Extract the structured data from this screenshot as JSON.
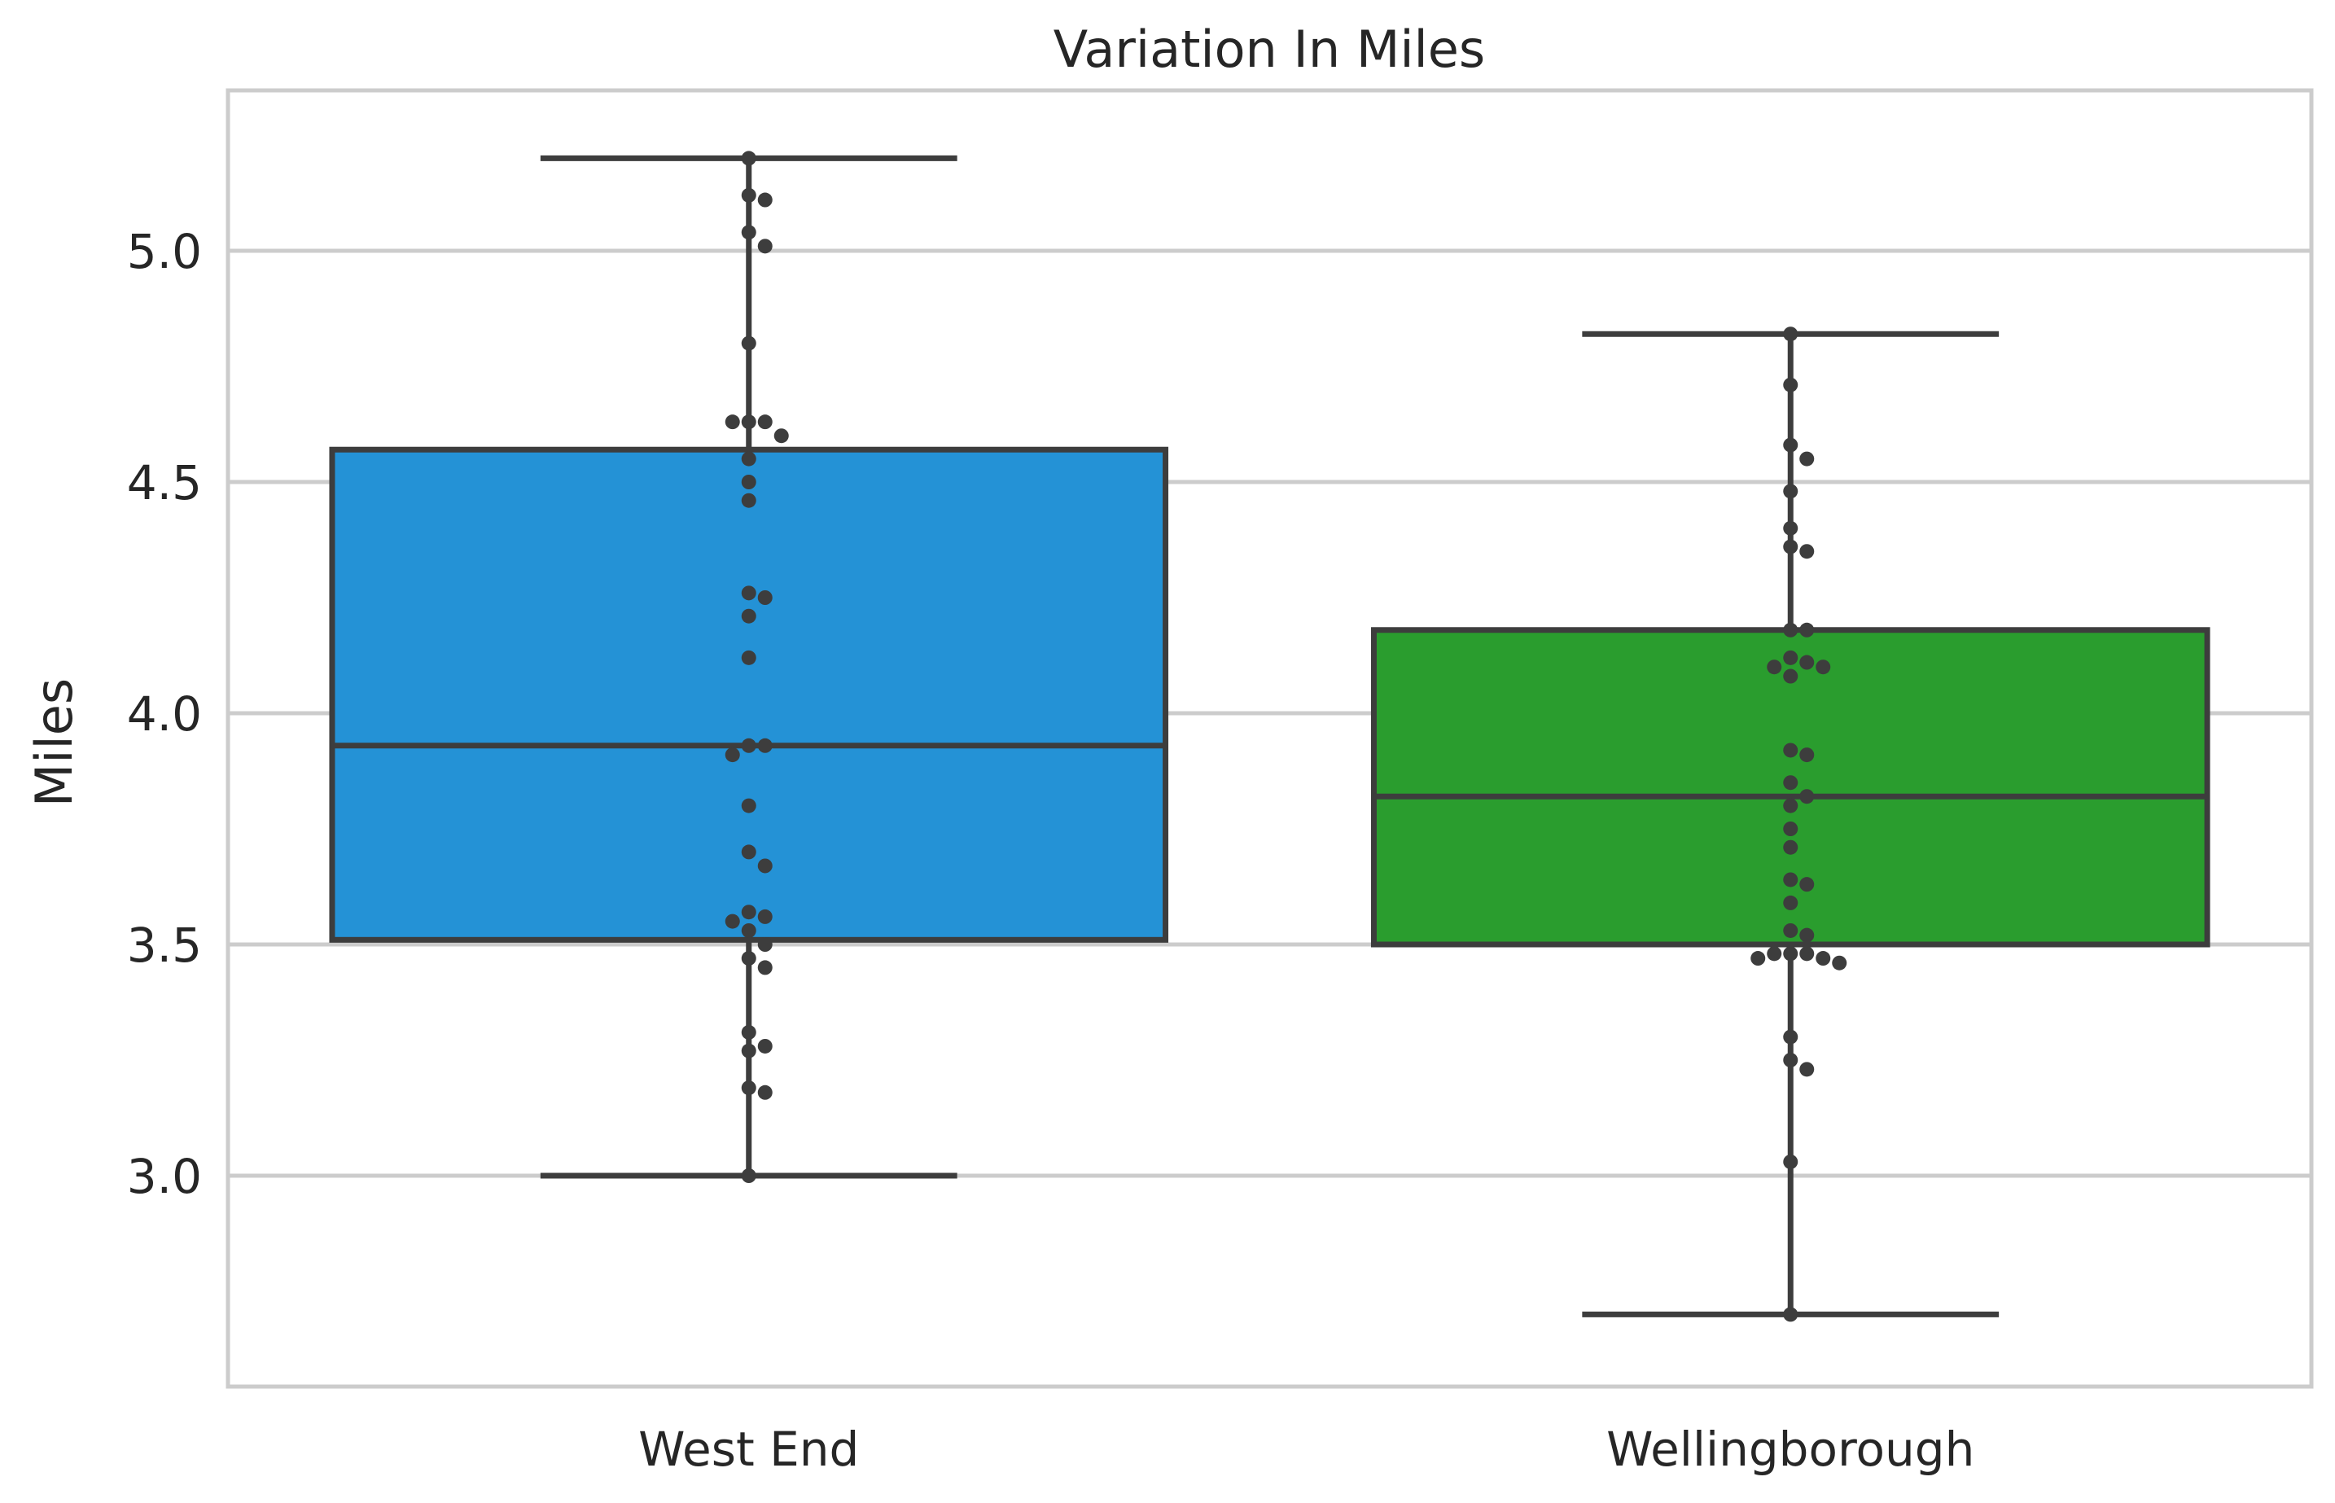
{
  "chart_data": {
    "type": "box",
    "title": "Variation In Miles",
    "xlabel": "",
    "ylabel": "Miles",
    "ylim": [
      2.55,
      5.35
    ],
    "yticks": [
      3.0,
      3.5,
      4.0,
      4.5,
      5.0
    ],
    "ytick_labels": [
      "3.0",
      "3.5",
      "4.0",
      "4.5",
      "5.0"
    ],
    "grid": "horizontal",
    "categories": [
      "West End",
      "Wellingborough"
    ],
    "boxes": [
      {
        "category": "West End",
        "color": "#2492d6",
        "whisker_low": 3.0,
        "q1": 3.51,
        "median": 3.93,
        "q3": 4.57,
        "whisker_high": 5.2,
        "points": [
          5.2,
          5.12,
          5.11,
          5.04,
          5.01,
          4.8,
          4.63,
          4.63,
          4.63,
          4.6,
          4.55,
          4.5,
          4.46,
          4.26,
          4.25,
          4.21,
          4.12,
          3.93,
          3.93,
          3.91,
          3.8,
          3.7,
          3.67,
          3.57,
          3.56,
          3.55,
          3.53,
          3.5,
          3.47,
          3.45,
          3.31,
          3.28,
          3.27,
          3.19,
          3.18,
          3.0
        ]
      },
      {
        "category": "Wellingborough",
        "color": "#2a9d2e",
        "whisker_low": 2.7,
        "q1": 3.5,
        "median": 3.82,
        "q3": 4.18,
        "whisker_high": 4.82,
        "points": [
          4.82,
          4.71,
          4.58,
          4.55,
          4.48,
          4.4,
          4.36,
          4.35,
          4.18,
          4.18,
          4.12,
          4.11,
          4.1,
          4.1,
          4.08,
          3.92,
          3.91,
          3.85,
          3.82,
          3.8,
          3.75,
          3.71,
          3.64,
          3.63,
          3.59,
          3.53,
          3.52,
          3.48,
          3.48,
          3.48,
          3.47,
          3.47,
          3.46,
          3.3,
          3.25,
          3.23,
          3.03,
          2.7
        ]
      }
    ],
    "line_color": "#3d3d3d",
    "grid_color": "#cccccc"
  }
}
